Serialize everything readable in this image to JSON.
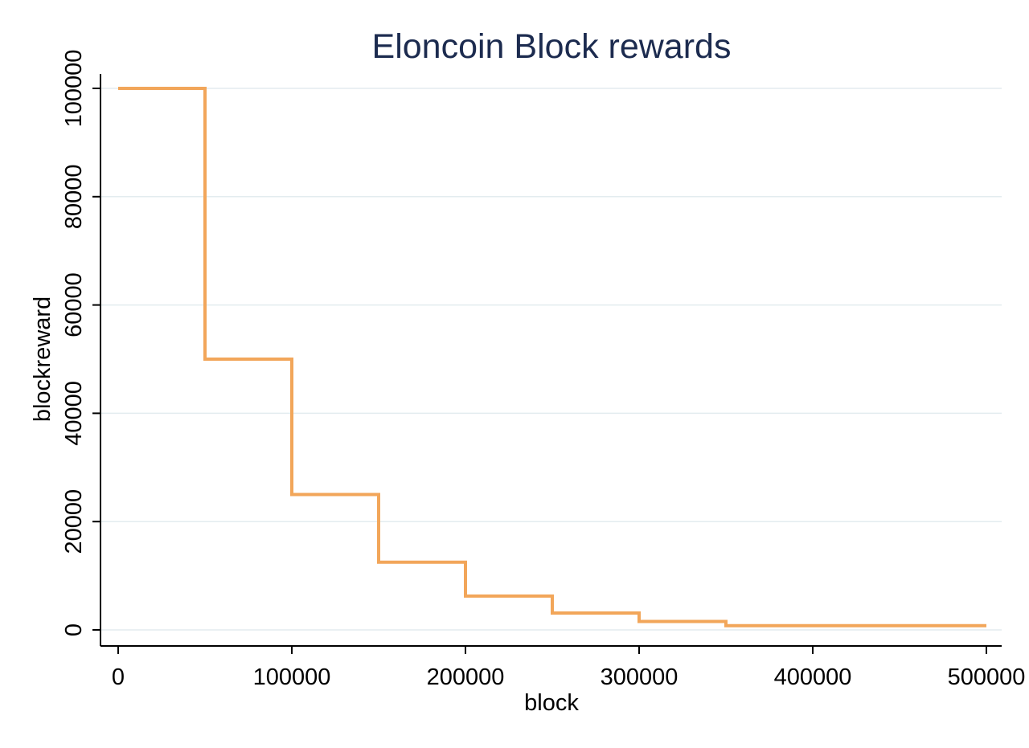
{
  "chart_data": {
    "type": "line",
    "title": "Eloncoin Block rewards",
    "xlabel": "block",
    "ylabel": "blockreward",
    "xlim": [
      0,
      500000
    ],
    "ylim": [
      0,
      100000
    ],
    "x_ticks": [
      "0",
      "100000",
      "200000",
      "300000",
      "400000",
      "500000"
    ],
    "y_ticks": [
      "0",
      "20000",
      "40000",
      "60000",
      "80000",
      "100000"
    ],
    "grid": true,
    "step": true,
    "series": [
      {
        "color": "#f2a65a",
        "x": [
          0,
          50000,
          100000,
          150000,
          200000,
          250000,
          300000,
          350000,
          500000
        ],
        "y": [
          100000,
          50000,
          25000,
          12500,
          6250,
          3125,
          1562.5,
          781.25,
          781.25
        ]
      }
    ]
  }
}
